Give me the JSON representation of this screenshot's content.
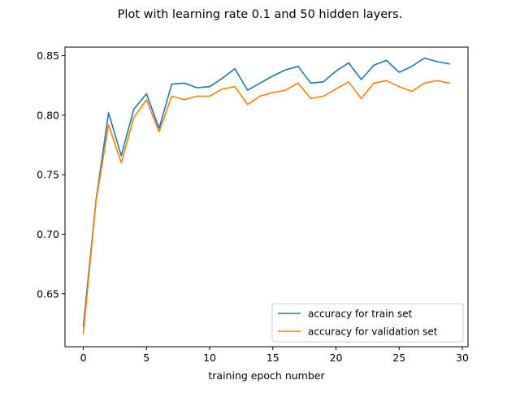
{
  "chart_data": {
    "type": "line",
    "title": "Plot with learning rate 0.1 and 50 hidden layers.",
    "xlabel": "training epoch number",
    "ylabel": "",
    "xlim": [
      -1.45,
      30.45
    ],
    "ylim": [
      0.6055,
      0.8572
    ],
    "xticks": [
      0,
      5,
      10,
      15,
      20,
      25,
      30
    ],
    "xtick_labels": [
      "0",
      "5",
      "10",
      "15",
      "20",
      "25",
      "30"
    ],
    "yticks": [
      0.65,
      0.7,
      0.75,
      0.8,
      0.85
    ],
    "ytick_labels": [
      "0.65",
      "0.70",
      "0.75",
      "0.80",
      "0.85"
    ],
    "grid": false,
    "legend_position": "lower-right",
    "x": [
      0,
      1,
      2,
      3,
      4,
      5,
      6,
      7,
      8,
      9,
      10,
      11,
      12,
      13,
      14,
      15,
      16,
      17,
      18,
      19,
      20,
      21,
      22,
      23,
      24,
      25,
      26,
      27,
      28,
      29
    ],
    "series": [
      {
        "name": "accuracy for train set",
        "color": "#1f77b4",
        "values": [
          0.622,
          0.728,
          0.802,
          0.766,
          0.805,
          0.818,
          0.789,
          0.826,
          0.827,
          0.823,
          0.824,
          0.831,
          0.839,
          0.821,
          0.827,
          0.833,
          0.838,
          0.841,
          0.827,
          0.828,
          0.837,
          0.844,
          0.83,
          0.842,
          0.846,
          0.836,
          0.841,
          0.848,
          0.845,
          0.843
        ]
      },
      {
        "name": "accuracy for validation set",
        "color": "#ff7f0e",
        "values": [
          0.616,
          0.727,
          0.792,
          0.76,
          0.798,
          0.813,
          0.786,
          0.816,
          0.813,
          0.816,
          0.816,
          0.822,
          0.824,
          0.809,
          0.816,
          0.819,
          0.821,
          0.827,
          0.814,
          0.816,
          0.822,
          0.828,
          0.814,
          0.827,
          0.829,
          0.824,
          0.82,
          0.827,
          0.829,
          0.827
        ]
      }
    ]
  }
}
